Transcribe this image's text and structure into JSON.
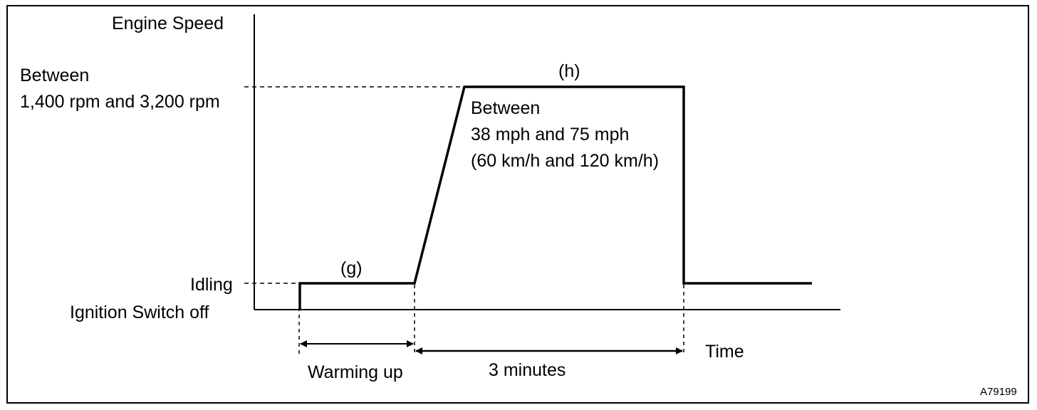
{
  "y_axis": {
    "title": "Engine Speed",
    "levels": [
      {
        "label_lines": [
          "Between",
          "1,400 rpm and 3,200 rpm"
        ]
      },
      {
        "label_lines": [
          "Idling"
        ]
      },
      {
        "label_lines": [
          "Ignition Switch off"
        ]
      }
    ]
  },
  "x_axis": {
    "title": "Time"
  },
  "annotations": {
    "g": "(g)",
    "h": "(h)",
    "vehicle_speed_lines": [
      "Between",
      "38 mph and 75 mph",
      "(60 km/h and 120 km/h)"
    ]
  },
  "intervals": [
    {
      "label": "Warming up"
    },
    {
      "label": "3 minutes"
    }
  ],
  "figure_code": "A79199"
}
